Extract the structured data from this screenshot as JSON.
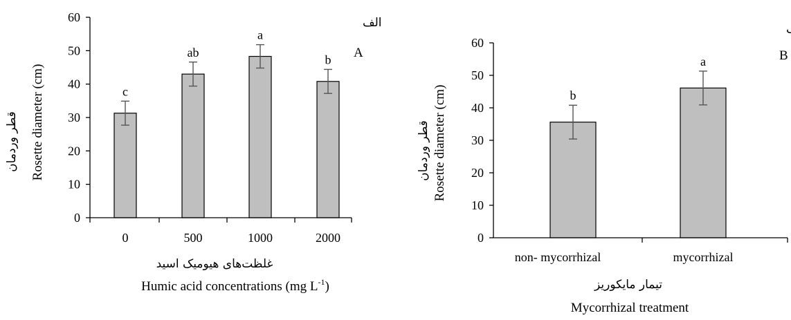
{
  "chart_data": [
    {
      "type": "bar",
      "panel": "A",
      "panel_fa": "الف",
      "categories": [
        "0",
        "500",
        "1000",
        "2000"
      ],
      "values": [
        31.3,
        43.0,
        48.3,
        40.8
      ],
      "errors": [
        3.6,
        3.6,
        3.5,
        3.6
      ],
      "significance": [
        "c",
        "ab",
        "a",
        "b"
      ],
      "ylim": [
        0,
        60
      ],
      "yticks": [
        "0",
        "10",
        "20",
        "30",
        "40",
        "50",
        "60"
      ],
      "ylabel": "Rosette diameter (cm)",
      "ylabel_fa": "قطر وردمان",
      "xlabel": "Humic acid concentrations (mg L",
      "xlabel_sup": "-1",
      "xlabel_end": ")",
      "xlabel_fa": "غلظت‌های هیومیک اسید",
      "bar_color": "#bfbfbf",
      "grid": false
    },
    {
      "type": "bar",
      "panel": "B",
      "panel_fa": "ب",
      "categories": [
        "non-  mycorrhizal",
        "mycorrhizal"
      ],
      "values": [
        35.6,
        46.1
      ],
      "errors": [
        5.2,
        5.2
      ],
      "significance": [
        "b",
        "a"
      ],
      "ylim": [
        0,
        60
      ],
      "yticks": [
        "0",
        "10",
        "20",
        "30",
        "40",
        "50",
        "60"
      ],
      "ylabel": "Rosette diameter (cm)",
      "ylabel_fa": "قطر وردمان",
      "xlabel": "Mycorrhizal treatment",
      "xlabel_fa": "تیمار مایکوریز",
      "bar_color": "#bfbfbf",
      "grid": false
    }
  ]
}
